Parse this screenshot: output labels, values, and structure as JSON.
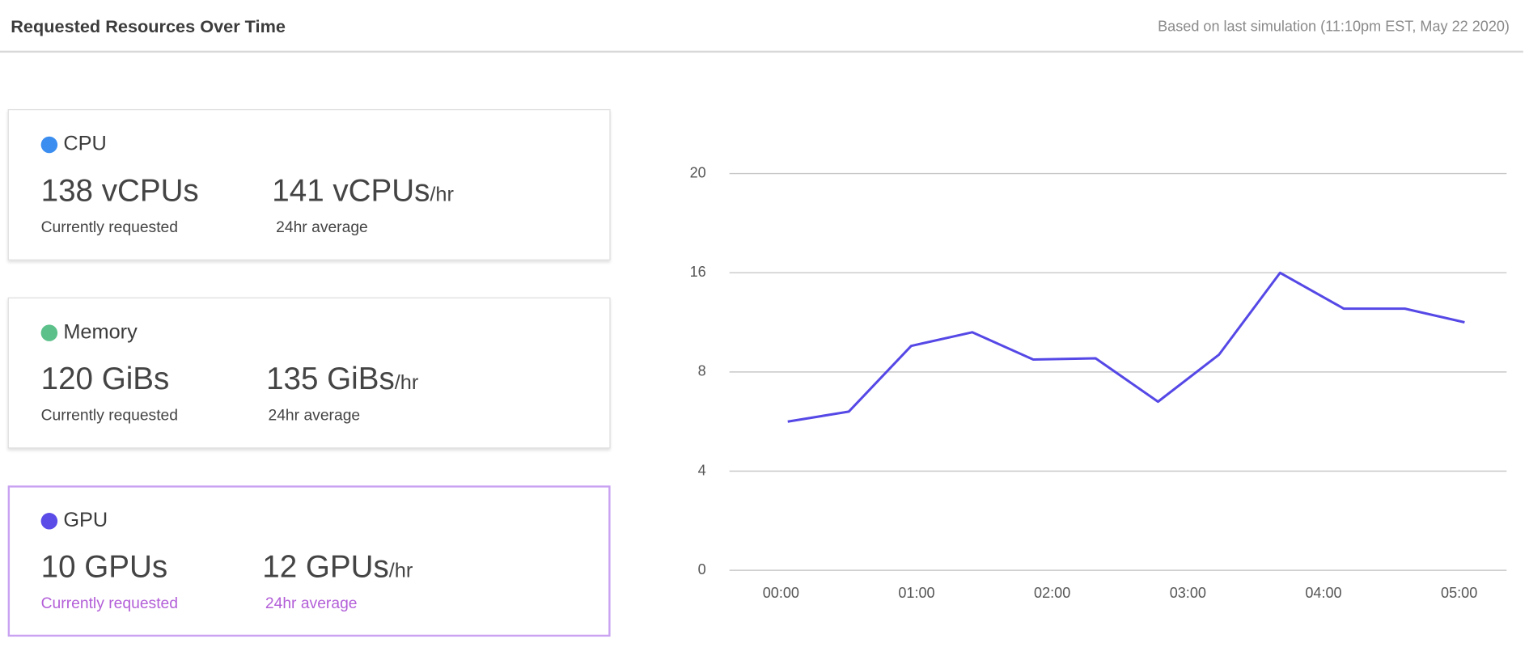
{
  "header": {
    "title": "Requested Resources Over Time",
    "subtitle": "Based on last simulation (11:10pm EST, May 22 2020)"
  },
  "cards": [
    {
      "name": "CPU",
      "color": "#3b8ef0",
      "current": "138 vCPUs",
      "current_label": "Currently requested",
      "average": "141 vCPUs",
      "average_unit": "/hr",
      "average_label": "24hr average"
    },
    {
      "name": "Memory",
      "color": "#5cc08a",
      "current": "120 GiBs",
      "current_label": "Currently requested",
      "average": "135 GiBs",
      "average_unit": "/hr",
      "average_label": "24hr average"
    },
    {
      "name": "GPU",
      "color": "#5b4ce8",
      "current": "10 GPUs",
      "current_label": "Currently requested",
      "average": "12 GPUs",
      "average_unit": "/hr",
      "average_label": "24hr average"
    }
  ],
  "chart_data": {
    "type": "line",
    "color": "#5548e6",
    "grid": true,
    "x": [
      0.05,
      0.5,
      0.96,
      1.41,
      1.86,
      2.32,
      2.78,
      3.23,
      3.68,
      4.15,
      4.6,
      5.04
    ],
    "values": [
      6,
      6.4,
      10.1,
      11.2,
      9,
      9.1,
      6.8,
      9.4,
      16,
      13.1,
      13.1,
      12
    ],
    "xlim": [
      -0.38,
      5.35
    ],
    "xticks": [
      {
        "value": 0,
        "label": "00:00"
      },
      {
        "value": 1,
        "label": "01:00"
      },
      {
        "value": 2,
        "label": "02:00"
      },
      {
        "value": 3,
        "label": "03:00"
      },
      {
        "value": 4,
        "label": "04:00"
      },
      {
        "value": 5,
        "label": "05:00"
      }
    ],
    "ylim": [
      0,
      20
    ],
    "yticks": [
      0,
      4,
      8,
      16,
      20
    ]
  }
}
